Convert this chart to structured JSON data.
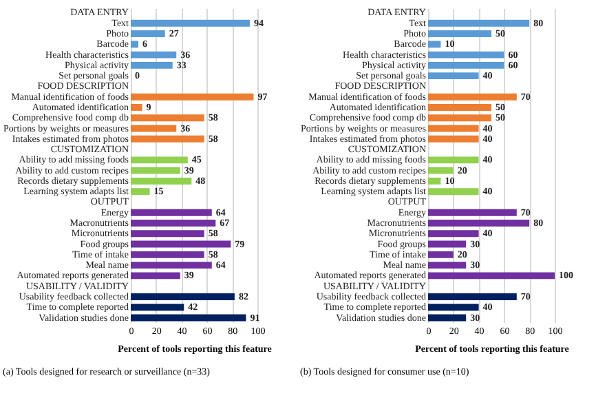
{
  "chart_data": [
    {
      "type": "bar",
      "orientation": "horizontal",
      "title": "(a) Tools designed for research or surveillance (n=33)",
      "xlabel": "Percent of tools reporting this feature",
      "categories": [
        "DATA ENTRY",
        "Text",
        "Photo",
        "Barcode",
        "Health characteristics",
        "Physical activity",
        "Set personal goals",
        "FOOD DESCRIPTION",
        "Manual identification of foods",
        "Automated identification",
        "Comprehensive food comp db",
        "Portions by weights or measures",
        "Intakes estimated from photos",
        "CUSTOMIZATION",
        "Ability to add missing foods",
        "Ability to add custom recipes",
        "Records dietary supplements",
        "Learning system adapts list",
        "OUTPUT",
        "Energy",
        "Macronutrients",
        "Micronutrients",
        "Food groups",
        "Time of intake",
        "Meal name",
        "Automated reports generated",
        "USABILITY / VALIDITY",
        "Usability feedback collected",
        "Time to complete reported",
        "Validation studies done"
      ],
      "series": [
        {
          "color": "#5b9bd5",
          "values": [
            null,
            94,
            27,
            6,
            36,
            33,
            0,
            null,
            null,
            null,
            null,
            null,
            null,
            null,
            null,
            null,
            null,
            null,
            null,
            null,
            null,
            null,
            null,
            null,
            null,
            null,
            null,
            null,
            null,
            null
          ]
        },
        {
          "color": "#ed7d31",
          "values": [
            null,
            null,
            null,
            null,
            null,
            null,
            null,
            null,
            97,
            9,
            58,
            36,
            58,
            null,
            null,
            null,
            null,
            null,
            null,
            null,
            null,
            null,
            null,
            null,
            null,
            null,
            null,
            null,
            null,
            null
          ]
        },
        {
          "color": "#92d050",
          "values": [
            null,
            null,
            null,
            null,
            null,
            null,
            null,
            null,
            null,
            null,
            null,
            null,
            null,
            null,
            45,
            39,
            48,
            15,
            null,
            null,
            null,
            null,
            null,
            null,
            null,
            null,
            null,
            null,
            null,
            null
          ]
        },
        {
          "color": "#7030a0",
          "values": [
            null,
            null,
            null,
            null,
            null,
            null,
            null,
            null,
            null,
            null,
            null,
            null,
            null,
            null,
            null,
            null,
            null,
            null,
            null,
            64,
            67,
            58,
            79,
            58,
            64,
            39,
            null,
            null,
            null,
            null
          ]
        },
        {
          "color": "#002060",
          "values": [
            null,
            null,
            null,
            null,
            null,
            null,
            null,
            null,
            null,
            null,
            null,
            null,
            null,
            null,
            null,
            null,
            null,
            null,
            null,
            null,
            null,
            null,
            null,
            null,
            null,
            null,
            null,
            82,
            42,
            91
          ]
        }
      ],
      "xlim": [
        0,
        100
      ],
      "xticks": [
        0,
        20,
        40,
        60,
        80,
        100
      ],
      "grid": "x",
      "data_labels": true
    },
    {
      "type": "bar",
      "orientation": "horizontal",
      "title": "(b) Tools designed for consumer use (n=10)",
      "xlabel": "Percent of tools reporting this feature",
      "categories": [
        "DATA ENTRY",
        "Text",
        "Photo",
        "Barcode",
        "Health characteristics",
        "Physical activity",
        "Set personal goals",
        "FOOD DESCRIPTION",
        "Manual identification of foods",
        "Automated identification",
        "Comprehensive food comp db",
        "Portions by weights or measures",
        "Intakes estimated from photos",
        "CUSTOMIZATION",
        "Ability to add missing foods",
        "Ability to add custom recipes",
        "Records dietary supplements",
        "Learning system adapts list",
        "OUTPUT",
        "Energy",
        "Macronutrients",
        "Micronutrients",
        "Food groups",
        "Time of intake",
        "Meal name",
        "Automated reports generated",
        "USABILITY / VALIDITY",
        "Usability feedback collected",
        "Time to complete reported",
        "Validation studies done"
      ],
      "series": [
        {
          "color": "#5b9bd5",
          "values": [
            null,
            80,
            50,
            10,
            60,
            60,
            40,
            null,
            null,
            null,
            null,
            null,
            null,
            null,
            null,
            null,
            null,
            null,
            null,
            null,
            null,
            null,
            null,
            null,
            null,
            null,
            null,
            null,
            null,
            null
          ]
        },
        {
          "color": "#ed7d31",
          "values": [
            null,
            null,
            null,
            null,
            null,
            null,
            null,
            null,
            70,
            50,
            50,
            40,
            40,
            null,
            null,
            null,
            null,
            null,
            null,
            null,
            null,
            null,
            null,
            null,
            null,
            null,
            null,
            null,
            null,
            null
          ]
        },
        {
          "color": "#92d050",
          "values": [
            null,
            null,
            null,
            null,
            null,
            null,
            null,
            null,
            null,
            null,
            null,
            null,
            null,
            null,
            40,
            20,
            10,
            40,
            null,
            null,
            null,
            null,
            null,
            null,
            null,
            null,
            null,
            null,
            null,
            null
          ]
        },
        {
          "color": "#7030a0",
          "values": [
            null,
            null,
            null,
            null,
            null,
            null,
            null,
            null,
            null,
            null,
            null,
            null,
            null,
            null,
            null,
            null,
            null,
            null,
            null,
            70,
            80,
            40,
            30,
            20,
            30,
            100,
            null,
            null,
            null,
            null
          ]
        },
        {
          "color": "#002060",
          "values": [
            null,
            null,
            null,
            null,
            null,
            null,
            null,
            null,
            null,
            null,
            null,
            null,
            null,
            null,
            null,
            null,
            null,
            null,
            null,
            null,
            null,
            null,
            null,
            null,
            null,
            null,
            null,
            70,
            40,
            30
          ]
        }
      ],
      "xlim": [
        0,
        100
      ],
      "xticks": [
        0,
        20,
        40,
        60,
        80,
        100
      ],
      "grid": "x",
      "data_labels": true
    }
  ]
}
